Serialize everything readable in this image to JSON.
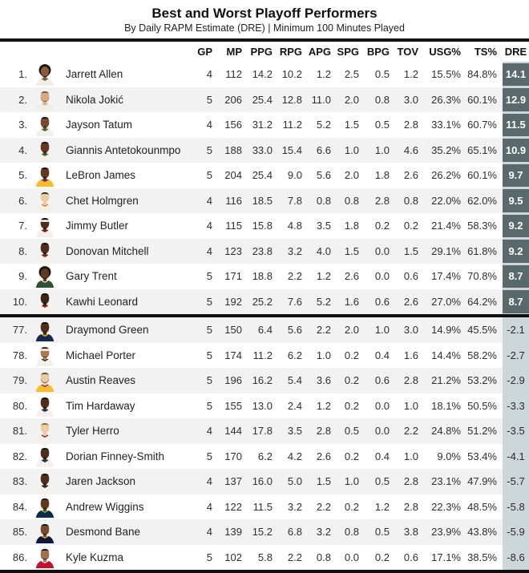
{
  "title": "Best and Worst Playoff Performers",
  "subtitle": "By Daily RAPM Estimate (DRE) | Minimum 100 Minutes Played",
  "columns": [
    "GP",
    "MP",
    "PPG",
    "RPG",
    "APG",
    "SPG",
    "BPG",
    "TOV",
    "USG%",
    "TS%",
    "DRE"
  ],
  "colors": {
    "dre_positive_bg": "#5a696b",
    "dre_positive_text": "#ffffff",
    "dre_negative_bg": "#cdd6d8",
    "dre_negative_text": "#2b2b2b",
    "dre_column_strip": "#cdd6d8",
    "row_stripe": "#f2f2f2",
    "rule": "#111111"
  },
  "chart_data": {
    "type": "table",
    "title": "Best and Worst Playoff Performers",
    "subtitle": "By Daily RAPM Estimate (DRE) | Minimum 100 Minutes Played",
    "columns": [
      "GP",
      "MP",
      "PPG",
      "RPG",
      "APG",
      "SPG",
      "BPG",
      "TOV",
      "USG%",
      "TS%",
      "DRE"
    ],
    "sections": [
      {
        "name": "best",
        "players": [
          {
            "rank": "1.",
            "name": "Jarrett Allen",
            "gp": "4",
            "mp": "112",
            "ppg": "14.2",
            "rpg": "10.2",
            "apg": "1.2",
            "spg": "2.5",
            "bpg": "0.5",
            "tov": "1.2",
            "usg": "15.5%",
            "ts": "84.8%",
            "dre": "14.1",
            "avatar": {
              "skin": "#8a5a3b",
              "hair": "#171413",
              "jersey": "#f3efe6",
              "trim": "#5b5b5b",
              "style": "afro",
              "beard": true
            }
          },
          {
            "rank": "2.",
            "name": "Nikola Jokić",
            "gp": "5",
            "mp": "206",
            "ppg": "25.4",
            "rpg": "12.8",
            "apg": "11.0",
            "spg": "2.0",
            "bpg": "0.8",
            "tov": "3.0",
            "usg": "26.3%",
            "ts": "60.1%",
            "dre": "12.9",
            "avatar": {
              "skin": "#d8a97e",
              "hair": "#7a5a3b",
              "jersey": "#f1ede4",
              "trim": "#bcc8d4",
              "style": "short",
              "beard": true
            }
          },
          {
            "rank": "3.",
            "name": "Jayson Tatum",
            "gp": "4",
            "mp": "156",
            "ppg": "31.2",
            "rpg": "11.2",
            "apg": "5.2",
            "spg": "1.5",
            "bpg": "0.5",
            "tov": "2.8",
            "usg": "33.1%",
            "ts": "60.7%",
            "dre": "11.5",
            "avatar": {
              "skin": "#7a4a2e",
              "hair": "#171413",
              "jersey": "#f3f0e7",
              "trim": "#1e7a44",
              "style": "short",
              "beard": true
            }
          },
          {
            "rank": "4.",
            "name": "Giannis Antetokounmpo",
            "gp": "5",
            "mp": "188",
            "ppg": "33.0",
            "rpg": "15.4",
            "apg": "6.6",
            "spg": "1.0",
            "bpg": "1.0",
            "tov": "4.6",
            "usg": "35.2%",
            "ts": "65.1%",
            "dre": "10.9",
            "avatar": {
              "skin": "#63381f",
              "hair": "#171413",
              "jersey": "#f3f0e7",
              "trim": "#1e7a44",
              "style": "short",
              "beard": true
            }
          },
          {
            "rank": "5.",
            "name": "LeBron James",
            "gp": "5",
            "mp": "204",
            "ppg": "25.4",
            "rpg": "9.0",
            "apg": "5.6",
            "spg": "2.0",
            "bpg": "1.8",
            "tov": "2.6",
            "usg": "26.2%",
            "ts": "60.1%",
            "dre": "9.7",
            "avatar": {
              "skin": "#63381f",
              "hair": "#171413",
              "jersey": "#fdb927",
              "trim": "#552583",
              "style": "short",
              "beard": true
            }
          },
          {
            "rank": "6.",
            "name": "Chet Holmgren",
            "gp": "4",
            "mp": "116",
            "ppg": "18.5",
            "rpg": "7.8",
            "apg": "0.8",
            "spg": "0.8",
            "bpg": "2.8",
            "tov": "0.8",
            "usg": "22.0%",
            "ts": "62.0%",
            "dre": "9.5",
            "avatar": {
              "skin": "#eccaa4",
              "hair": "#2f2317",
              "jersey": "#f5f1e9",
              "trim": "#ef6231",
              "style": "short",
              "beard": false
            }
          },
          {
            "rank": "7.",
            "name": "Jimmy Butler",
            "gp": "4",
            "mp": "115",
            "ppg": "15.8",
            "rpg": "4.8",
            "apg": "3.5",
            "spg": "1.8",
            "bpg": "0.2",
            "tov": "0.2",
            "usg": "21.4%",
            "ts": "58.3%",
            "dre": "9.2",
            "avatar": {
              "skin": "#4f2d18",
              "hair": "#171413",
              "jersey": "#f5f1e9",
              "trim": "#98002e",
              "style": "headband",
              "beard": true
            }
          },
          {
            "rank": "8.",
            "name": "Donovan Mitchell",
            "gp": "4",
            "mp": "123",
            "ppg": "23.8",
            "rpg": "3.2",
            "apg": "4.0",
            "spg": "1.5",
            "bpg": "0.0",
            "tov": "1.5",
            "usg": "29.1%",
            "ts": "61.8%",
            "dre": "9.2",
            "avatar": {
              "skin": "#4f2d18",
              "hair": "#171413",
              "jersey": "#f5f1e9",
              "trim": "#6f263d",
              "style": "short",
              "beard": true
            }
          },
          {
            "rank": "9.",
            "name": "Gary Trent",
            "gp": "5",
            "mp": "171",
            "ppg": "18.8",
            "rpg": "2.2",
            "apg": "1.2",
            "spg": "2.6",
            "bpg": "0.0",
            "tov": "0.6",
            "usg": "17.4%",
            "ts": "70.8%",
            "dre": "8.7",
            "avatar": {
              "skin": "#63381f",
              "hair": "#171413",
              "jersey": "#2c5234",
              "trim": "#eee1c6",
              "style": "afro",
              "beard": true
            }
          },
          {
            "rank": "10.",
            "name": "Kawhi Leonard",
            "gp": "5",
            "mp": "192",
            "ppg": "25.2",
            "rpg": "7.6",
            "apg": "5.2",
            "spg": "1.6",
            "bpg": "0.6",
            "tov": "2.6",
            "usg": "27.0%",
            "ts": "64.2%",
            "dre": "8.7",
            "avatar": {
              "skin": "#3f2413",
              "hair": "#171413",
              "jersey": "#f5f1e9",
              "trim": "#c8102e",
              "style": "short",
              "beard": true
            }
          }
        ]
      },
      {
        "name": "worst",
        "players": [
          {
            "rank": "77.",
            "name": "Draymond Green",
            "gp": "5",
            "mp": "150",
            "ppg": "6.4",
            "rpg": "5.6",
            "apg": "2.2",
            "spg": "2.0",
            "bpg": "1.0",
            "tov": "3.0",
            "usg": "14.9%",
            "ts": "45.5%",
            "dre": "-2.1",
            "avatar": {
              "skin": "#4f2d18",
              "hair": "#171413",
              "jersey": "#14294b",
              "trim": "#ffc72c",
              "style": "short",
              "beard": true
            }
          },
          {
            "rank": "78.",
            "name": "Michael Porter",
            "gp": "5",
            "mp": "174",
            "ppg": "11.2",
            "rpg": "6.2",
            "apg": "1.0",
            "spg": "0.2",
            "bpg": "0.4",
            "tov": "1.6",
            "usg": "14.4%",
            "ts": "58.2%",
            "dre": "-2.7",
            "avatar": {
              "skin": "#b5764a",
              "hair": "#3b2a1a",
              "jersey": "#f5f1e9",
              "trim": "#0e2240",
              "style": "headband",
              "beard": true
            }
          },
          {
            "rank": "79.",
            "name": "Austin Reaves",
            "gp": "5",
            "mp": "196",
            "ppg": "16.2",
            "rpg": "5.4",
            "apg": "3.6",
            "spg": "0.2",
            "bpg": "0.6",
            "tov": "2.8",
            "usg": "21.2%",
            "ts": "53.2%",
            "dre": "-2.9",
            "avatar": {
              "skin": "#eccaa4",
              "hair": "#6e4a2f",
              "jersey": "#fdb927",
              "trim": "#552583",
              "style": "short",
              "beard": true
            }
          },
          {
            "rank": "80.",
            "name": "Tim Hardaway",
            "gp": "5",
            "mp": "155",
            "ppg": "13.0",
            "rpg": "2.4",
            "apg": "1.2",
            "spg": "0.2",
            "bpg": "0.0",
            "tov": "1.0",
            "usg": "18.1%",
            "ts": "50.5%",
            "dre": "-3.3",
            "avatar": {
              "skin": "#4f2d18",
              "hair": "#171413",
              "jersey": "#f5f1e9",
              "trim": "#00285e",
              "style": "short",
              "beard": true
            }
          },
          {
            "rank": "81.",
            "name": "Tyler Herro",
            "gp": "4",
            "mp": "144",
            "ppg": "17.8",
            "rpg": "3.5",
            "apg": "2.8",
            "spg": "0.5",
            "bpg": "0.0",
            "tov": "2.2",
            "usg": "24.8%",
            "ts": "51.2%",
            "dre": "-3.5",
            "avatar": {
              "skin": "#eccaa4",
              "hair": "#8f6b3a",
              "jersey": "#f5f1e9",
              "trim": "#98002e",
              "style": "short",
              "beard": false
            }
          },
          {
            "rank": "82.",
            "name": "Dorian Finney-Smith",
            "gp": "5",
            "mp": "170",
            "ppg": "6.2",
            "rpg": "4.2",
            "apg": "2.6",
            "spg": "0.2",
            "bpg": "0.4",
            "tov": "1.0",
            "usg": "9.0%",
            "ts": "53.4%",
            "dre": "-4.1",
            "avatar": {
              "skin": "#4f2d18",
              "hair": "#171413",
              "jersey": "#f5f1e9",
              "trim": "#00285e",
              "style": "short",
              "beard": true
            }
          },
          {
            "rank": "83.",
            "name": "Jaren Jackson",
            "gp": "4",
            "mp": "137",
            "ppg": "16.0",
            "rpg": "5.0",
            "apg": "1.5",
            "spg": "1.0",
            "bpg": "0.5",
            "tov": "2.8",
            "usg": "23.1%",
            "ts": "47.9%",
            "dre": "-5.7",
            "avatar": {
              "skin": "#4f2d18",
              "hair": "#171413",
              "jersey": "#f5f1e9",
              "trim": "#12173f",
              "style": "short",
              "beard": true
            }
          },
          {
            "rank": "84.",
            "name": "Andrew Wiggins",
            "gp": "4",
            "mp": "122",
            "ppg": "11.5",
            "rpg": "3.2",
            "apg": "2.2",
            "spg": "0.2",
            "bpg": "1.2",
            "tov": "2.8",
            "usg": "22.3%",
            "ts": "48.5%",
            "dre": "-5.8",
            "avatar": {
              "skin": "#63381f",
              "hair": "#171413",
              "jersey": "#0f2b4c",
              "trim": "#78be20",
              "style": "short",
              "beard": true
            }
          },
          {
            "rank": "85.",
            "name": "Desmond Bane",
            "gp": "4",
            "mp": "139",
            "ppg": "15.2",
            "rpg": "6.8",
            "apg": "3.2",
            "spg": "0.8",
            "bpg": "0.5",
            "tov": "3.8",
            "usg": "23.9%",
            "ts": "43.8%",
            "dre": "-5.9",
            "avatar": {
              "skin": "#7a4a2e",
              "hair": "#171413",
              "jersey": "#12173f",
              "trim": "#f5b112",
              "style": "short",
              "beard": true
            }
          },
          {
            "rank": "86.",
            "name": "Kyle Kuzma",
            "gp": "5",
            "mp": "102",
            "ppg": "5.8",
            "rpg": "2.2",
            "apg": "0.8",
            "spg": "0.0",
            "bpg": "0.2",
            "tov": "0.6",
            "usg": "17.1%",
            "ts": "38.5%",
            "dre": "-8.6",
            "avatar": {
              "skin": "#a5714a",
              "hair": "#171413",
              "jersey": "#c8102e",
              "trim": "#f5f1e9",
              "style": "short",
              "beard": true
            }
          }
        ]
      }
    ]
  }
}
